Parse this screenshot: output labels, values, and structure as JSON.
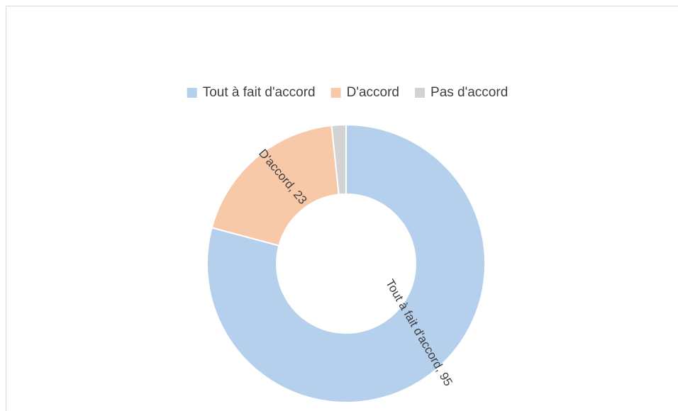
{
  "chart_data": {
    "type": "donut",
    "categories": [
      "Tout à fait d'accord",
      "D'accord",
      "Pas d'accord"
    ],
    "values": [
      95,
      23,
      2
    ],
    "value_labels": [
      "Tout à fait d'accord, 95",
      "D'accord, 23",
      null
    ],
    "colors": [
      "#b4d0ed",
      "#f8c9a8",
      "#d3d3d3"
    ],
    "legend": "top"
  }
}
